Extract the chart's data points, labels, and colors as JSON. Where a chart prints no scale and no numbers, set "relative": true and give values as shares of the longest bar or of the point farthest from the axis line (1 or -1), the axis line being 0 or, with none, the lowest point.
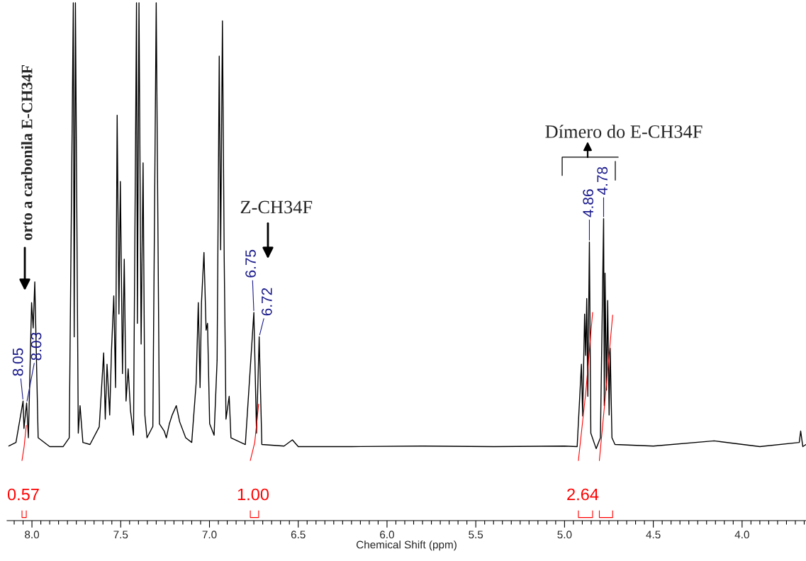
{
  "chart_data": {
    "type": "line",
    "relative": true,
    "xlabel": "Chemical Shift (ppm)",
    "xlim": [
      8.14,
      3.64
    ],
    "tick_labels": "x",
    "grid": false,
    "legend": false,
    "xticks": [
      {
        "value": 8.1,
        "label": null
      },
      {
        "value": 8.05,
        "label": null
      },
      {
        "value": 8.0,
        "label": "8.0"
      },
      {
        "value": 7.95,
        "label": null
      },
      {
        "value": 7.9,
        "label": null
      },
      {
        "value": 7.85,
        "label": null
      },
      {
        "value": 7.8,
        "label": null
      },
      {
        "value": 7.75,
        "label": null
      },
      {
        "value": 7.7,
        "label": null
      },
      {
        "value": 7.65,
        "label": null
      },
      {
        "value": 7.6,
        "label": null
      },
      {
        "value": 7.55,
        "label": null
      },
      {
        "value": 7.5,
        "label": "7.5"
      },
      {
        "value": 7.45,
        "label": null
      },
      {
        "value": 7.4,
        "label": null
      },
      {
        "value": 7.35,
        "label": null
      },
      {
        "value": 7.3,
        "label": null
      },
      {
        "value": 7.25,
        "label": null
      },
      {
        "value": 7.2,
        "label": null
      },
      {
        "value": 7.15,
        "label": null
      },
      {
        "value": 7.1,
        "label": null
      },
      {
        "value": 7.05,
        "label": null
      },
      {
        "value": 7.0,
        "label": "7.0"
      },
      {
        "value": 6.95,
        "label": null
      },
      {
        "value": 6.9,
        "label": null
      },
      {
        "value": 6.85,
        "label": null
      },
      {
        "value": 6.8,
        "label": null
      },
      {
        "value": 6.75,
        "label": null
      },
      {
        "value": 6.7,
        "label": null
      },
      {
        "value": 6.65,
        "label": null
      },
      {
        "value": 6.6,
        "label": null
      },
      {
        "value": 6.55,
        "label": null
      },
      {
        "value": 6.5,
        "label": "6.5"
      },
      {
        "value": 6.45,
        "label": null
      },
      {
        "value": 6.4,
        "label": null
      },
      {
        "value": 6.35,
        "label": null
      },
      {
        "value": 6.3,
        "label": null
      },
      {
        "value": 6.25,
        "label": null
      },
      {
        "value": 6.2,
        "label": null
      },
      {
        "value": 6.15,
        "label": null
      },
      {
        "value": 6.1,
        "label": null
      },
      {
        "value": 6.05,
        "label": null
      },
      {
        "value": 6.0,
        "label": "6.0"
      },
      {
        "value": 5.95,
        "label": null
      },
      {
        "value": 5.9,
        "label": null
      },
      {
        "value": 5.85,
        "label": null
      },
      {
        "value": 5.8,
        "label": null
      },
      {
        "value": 5.75,
        "label": null
      },
      {
        "value": 5.7,
        "label": null
      },
      {
        "value": 5.65,
        "label": null
      },
      {
        "value": 5.6,
        "label": null
      },
      {
        "value": 5.55,
        "label": null
      },
      {
        "value": 5.5,
        "label": "5.5"
      },
      {
        "value": 5.45,
        "label": null
      },
      {
        "value": 5.4,
        "label": null
      },
      {
        "value": 5.35,
        "label": null
      },
      {
        "value": 5.3,
        "label": null
      },
      {
        "value": 5.25,
        "label": null
      },
      {
        "value": 5.2,
        "label": null
      },
      {
        "value": 5.15,
        "label": null
      },
      {
        "value": 5.1,
        "label": null
      },
      {
        "value": 5.05,
        "label": null
      },
      {
        "value": 5.0,
        "label": "5.0"
      },
      {
        "value": 4.95,
        "label": null
      },
      {
        "value": 4.9,
        "label": null
      },
      {
        "value": 4.85,
        "label": null
      },
      {
        "value": 4.8,
        "label": null
      },
      {
        "value": 4.75,
        "label": null
      },
      {
        "value": 4.7,
        "label": null
      },
      {
        "value": 4.65,
        "label": null
      },
      {
        "value": 4.6,
        "label": null
      },
      {
        "value": 4.55,
        "label": null
      },
      {
        "value": 4.5,
        "label": "4.5"
      },
      {
        "value": 4.45,
        "label": null
      },
      {
        "value": 4.4,
        "label": null
      },
      {
        "value": 4.35,
        "label": null
      },
      {
        "value": 4.3,
        "label": null
      },
      {
        "value": 4.25,
        "label": null
      },
      {
        "value": 4.2,
        "label": null
      },
      {
        "value": 4.15,
        "label": null
      },
      {
        "value": 4.1,
        "label": null
      },
      {
        "value": 4.05,
        "label": null
      },
      {
        "value": 4.0,
        "label": "4.0"
      },
      {
        "value": 3.95,
        "label": null
      },
      {
        "value": 3.9,
        "label": null
      },
      {
        "value": 3.85,
        "label": null
      },
      {
        "value": 3.8,
        "label": null
      },
      {
        "value": 3.75,
        "label": null
      },
      {
        "value": 3.7,
        "label": null
      },
      {
        "value": 3.65,
        "label": null
      }
    ],
    "series": [
      {
        "color": "#000000",
        "x": [
          8.13,
          8.09,
          8.05,
          8.045,
          8.03,
          8.02,
          8.002,
          7.993,
          7.984,
          7.965,
          7.9,
          7.824,
          7.79,
          7.767,
          7.762,
          7.755,
          7.739,
          7.729,
          7.713,
          7.673,
          7.621,
          7.596,
          7.587,
          7.577,
          7.562,
          7.552,
          7.539,
          7.529,
          7.52,
          7.51,
          7.502,
          7.49,
          7.48,
          7.47,
          7.458,
          7.445,
          7.428,
          7.411,
          7.406,
          7.397,
          7.385,
          7.374,
          7.364,
          7.352,
          7.319,
          7.3,
          7.282,
          7.255,
          7.243,
          7.226,
          7.21,
          7.187,
          7.168,
          7.134,
          7.1,
          7.075,
          7.063,
          7.053,
          7.045,
          7.031,
          7.019,
          7.011,
          6.999,
          6.974,
          6.957,
          6.945,
          6.937,
          6.927,
          6.917,
          6.907,
          6.889,
          6.879,
          6.798,
          6.75,
          6.735,
          6.72,
          6.705,
          6.58,
          6.533,
          6.5,
          6.2,
          5.8,
          5.4,
          5.0,
          4.929,
          4.905,
          4.898,
          4.887,
          4.881,
          4.875,
          4.869,
          4.86,
          4.852,
          4.822,
          4.798,
          4.78,
          4.776,
          4.772,
          4.764,
          4.757,
          4.749,
          4.743,
          4.733,
          4.716,
          4.5,
          4.157,
          3.9,
          3.678,
          3.67,
          3.658,
          3.64
        ],
        "values": [
          0.144,
          0.151,
          0.231,
          0.178,
          0.227,
          0.16,
          0.421,
          0.372,
          0.461,
          0.16,
          0.143,
          0.143,
          0.16,
          1.0,
          0.355,
          1.0,
          0.169,
          0.222,
          0.151,
          0.147,
          0.181,
          0.324,
          0.196,
          0.302,
          0.204,
          0.328,
          0.434,
          0.257,
          0.783,
          0.399,
          0.655,
          0.284,
          0.505,
          0.231,
          0.293,
          0.213,
          0.165,
          1.0,
          0.381,
          1.0,
          0.341,
          0.691,
          0.204,
          0.16,
          0.182,
          1.0,
          0.187,
          0.173,
          0.16,
          0.187,
          0.204,
          0.222,
          0.191,
          0.16,
          0.151,
          0.266,
          0.421,
          0.257,
          0.421,
          0.518,
          0.368,
          0.381,
          0.187,
          0.165,
          0.31,
          0.897,
          0.523,
          0.965,
          0.505,
          0.196,
          0.24,
          0.16,
          0.147,
          0.402,
          0.169,
          0.355,
          0.147,
          0.144,
          0.156,
          0.143,
          0.143,
          0.144,
          0.143,
          0.144,
          0.143,
          0.302,
          0.202,
          0.399,
          0.319,
          0.429,
          0.24,
          0.538,
          0.169,
          0.139,
          0.16,
          0.583,
          0.222,
          0.478,
          0.252,
          0.425,
          0.204,
          0.333,
          0.16,
          0.147,
          0.144,
          0.154,
          0.143,
          0.151,
          0.173,
          0.143,
          0.147
        ]
      },
      {
        "color": "#ff0000",
        "x": [
          8.056,
          8.044,
          8.032
        ],
        "values": [
          0.116,
          0.143,
          0.184
        ]
      },
      {
        "color": "#ff0000",
        "x": [
          6.77,
          6.745,
          6.723
        ],
        "values": [
          0.116,
          0.151,
          0.225
        ]
      },
      {
        "color": "#ff0000",
        "x": [
          4.922,
          4.88,
          4.842
        ],
        "values": [
          0.116,
          0.249,
          0.402
        ]
      },
      {
        "color": "#ff0000",
        "x": [
          4.804,
          4.77,
          4.729
        ],
        "values": [
          0.116,
          0.24,
          0.397
        ]
      }
    ],
    "annotations": [
      {
        "text": "8.05",
        "x": 8.05,
        "y": 0.231
      },
      {
        "text": "8.03",
        "x": 8.03,
        "y": 0.227
      },
      {
        "text": "6.75",
        "x": 6.75,
        "y": 0.402
      },
      {
        "text": "6.72",
        "x": 6.72,
        "y": 0.355
      },
      {
        "text": "4.86",
        "x": 4.86,
        "y": 0.538
      },
      {
        "text": "4.78",
        "x": 4.78,
        "y": 0.583
      },
      "orto a carbonila E-CH34F",
      "Z-CH34F",
      "Dímero do E-CH34F",
      "0.57",
      "1.00",
      "2.64"
    ]
  }
}
